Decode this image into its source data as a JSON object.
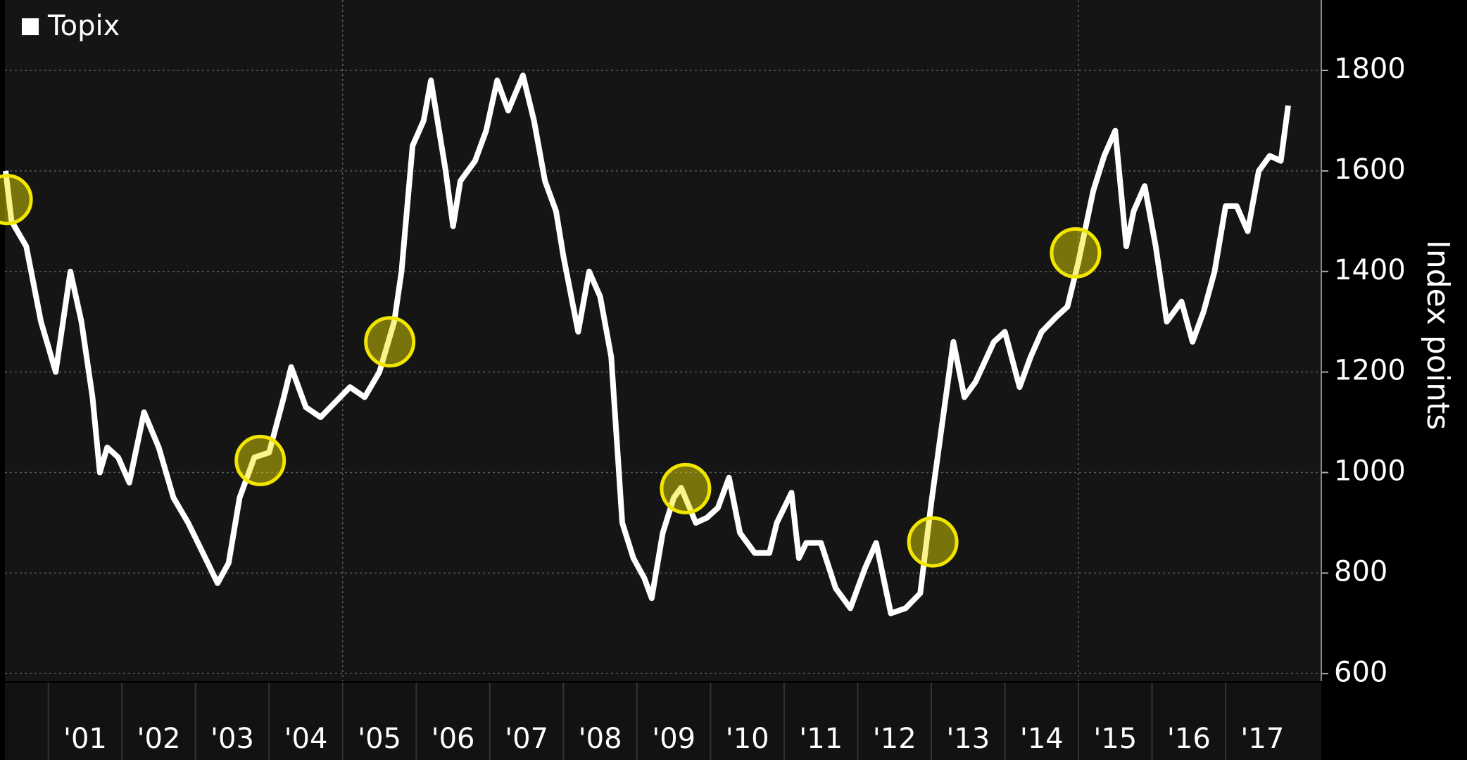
{
  "chart_data": {
    "type": "line",
    "y_axis_label": "Index points",
    "x": [
      2000.42,
      2000.5,
      2000.7,
      2000.9,
      2001.0,
      2001.1,
      2001.3,
      2001.45,
      2001.6,
      2001.7,
      2001.8,
      2001.95,
      2002.1,
      2002.3,
      2002.5,
      2002.7,
      2002.9,
      2003.1,
      2003.3,
      2003.45,
      2003.6,
      2003.8,
      2004.0,
      2004.2,
      2004.3,
      2004.5,
      2004.7,
      2004.9,
      2005.1,
      2005.3,
      2005.5,
      2005.7,
      2005.8,
      2005.95,
      2006.1,
      2006.2,
      2006.4,
      2006.5,
      2006.6,
      2006.8,
      2006.95,
      2007.1,
      2007.25,
      2007.45,
      2007.6,
      2007.75,
      2007.9,
      2008.0,
      2008.2,
      2008.35,
      2008.5,
      2008.65,
      2008.8,
      2008.95,
      2009.1,
      2009.2,
      2009.35,
      2009.5,
      2009.6,
      2009.8,
      2009.95,
      2010.1,
      2010.25,
      2010.4,
      2010.6,
      2010.8,
      2010.9,
      2011.1,
      2011.2,
      2011.3,
      2011.5,
      2011.7,
      2011.9,
      2012.1,
      2012.25,
      2012.45,
      2012.65,
      2012.85,
      2013.0,
      2013.15,
      2013.3,
      2013.45,
      2013.6,
      2013.85,
      2014.0,
      2014.2,
      2014.35,
      2014.5,
      2014.7,
      2014.85,
      2015.0,
      2015.2,
      2015.35,
      2015.5,
      2015.65,
      2015.75,
      2015.9,
      2016.05,
      2016.2,
      2016.4,
      2016.55,
      2016.7,
      2016.85,
      2017.0,
      2017.15,
      2017.3,
      2017.45,
      2017.6,
      2017.75,
      2017.85
    ],
    "series": [
      {
        "name": "Topix",
        "color": "#ffffff",
        "values": [
          1600,
          1500,
          1450,
          1300,
          1250,
          1200,
          1400,
          1300,
          1150,
          1000,
          1050,
          1030,
          980,
          1120,
          1050,
          950,
          900,
          840,
          780,
          820,
          950,
          1030,
          1040,
          1150,
          1210,
          1130,
          1110,
          1140,
          1170,
          1150,
          1200,
          1300,
          1400,
          1650,
          1700,
          1780,
          1600,
          1490,
          1580,
          1620,
          1680,
          1780,
          1720,
          1790,
          1700,
          1580,
          1520,
          1430,
          1280,
          1400,
          1350,
          1230,
          900,
          830,
          790,
          750,
          880,
          950,
          970,
          900,
          910,
          930,
          990,
          880,
          840,
          840,
          900,
          960,
          830,
          860,
          860,
          770,
          730,
          810,
          860,
          720,
          730,
          760,
          940,
          1100,
          1260,
          1150,
          1180,
          1260,
          1280,
          1170,
          1230,
          1280,
          1310,
          1330,
          1420,
          1560,
          1630,
          1680,
          1450,
          1520,
          1570,
          1450,
          1300,
          1340,
          1260,
          1320,
          1400,
          1530,
          1530,
          1480,
          1600,
          1630,
          1620,
          1730
        ]
      }
    ],
    "highlights": {
      "x": [
        2000.44,
        2003.88,
        2005.64,
        2009.66,
        2013.02,
        2014.96
      ],
      "y": [
        1543,
        1024,
        1260,
        968,
        862,
        1437
      ],
      "color": "#f2e600"
    },
    "xlim": [
      2000.41,
      2018.3
    ],
    "xticks": [
      {
        "value": 2001.5,
        "label": "'01"
      },
      {
        "value": 2002.5,
        "label": "'02"
      },
      {
        "value": 2003.5,
        "label": "'03"
      },
      {
        "value": 2004.5,
        "label": "'04"
      },
      {
        "value": 2005.5,
        "label": "'05"
      },
      {
        "value": 2006.5,
        "label": "'06"
      },
      {
        "value": 2007.5,
        "label": "'07"
      },
      {
        "value": 2008.5,
        "label": "'08"
      },
      {
        "value": 2009.5,
        "label": "'09"
      },
      {
        "value": 2010.5,
        "label": "'10"
      },
      {
        "value": 2011.5,
        "label": "'11"
      },
      {
        "value": 2012.5,
        "label": "'12"
      },
      {
        "value": 2013.5,
        "label": "'13"
      },
      {
        "value": 2014.5,
        "label": "'14"
      },
      {
        "value": 2015.5,
        "label": "'15"
      },
      {
        "value": 2016.5,
        "label": "'16"
      },
      {
        "value": 2017.5,
        "label": "'17"
      }
    ],
    "x_gridlines": [
      2005,
      2015
    ],
    "ylim": [
      585,
      1940
    ],
    "yticks": [
      600,
      800,
      1000,
      1200,
      1400,
      1600,
      1800
    ],
    "grid": true
  }
}
